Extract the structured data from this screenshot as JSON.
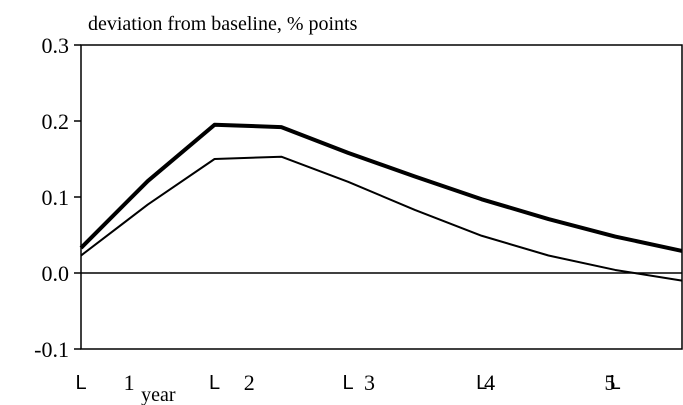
{
  "chart_data": {
    "type": "line",
    "title": "deviation from baseline, % points",
    "x": [
      0,
      1,
      2,
      3,
      4,
      5,
      6,
      7,
      8,
      9
    ],
    "xlim": [
      0,
      9
    ],
    "xticks": [
      {
        "value": 0,
        "label": "L"
      },
      {
        "value": 2,
        "label": "L"
      },
      {
        "value": 4,
        "label": "L"
      },
      {
        "value": 6,
        "label": "L"
      },
      {
        "value": 8,
        "label": "L"
      }
    ],
    "x_labels": [
      "1",
      "2",
      "3",
      "4",
      "5"
    ],
    "x_unit_label": "year",
    "ylim": [
      -0.1,
      0.3
    ],
    "yticks": [
      {
        "value": -0.1,
        "label": "-0.1"
      },
      {
        "value": 0,
        "label": "0.0"
      },
      {
        "value": 0.1,
        "label": "0.1"
      },
      {
        "value": 0.2,
        "label": "0.2"
      },
      {
        "value": 0.3,
        "label": "0.3"
      }
    ],
    "series": [
      {
        "color": "#000000",
        "line_width": 4,
        "values": [
          0.033,
          0.121,
          0.195,
          0.192,
          0.158,
          0.127,
          0.097,
          0.071,
          0.048,
          0.029
        ]
      },
      {
        "color": "#000000",
        "line_width": 2,
        "values": [
          0.023,
          0.09,
          0.15,
          0.153,
          0.12,
          0.083,
          0.049,
          0.023,
          0.004,
          -0.01
        ]
      }
    ]
  }
}
